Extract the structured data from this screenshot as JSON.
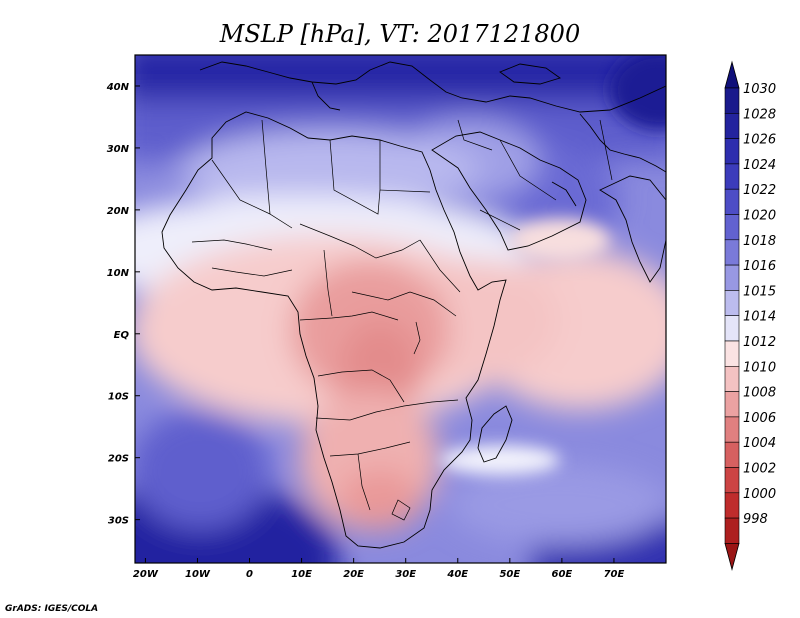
{
  "title": "MSLP [hPa], VT: 2017121800",
  "credit": "GrADS: IGES/COLA",
  "map": {
    "lon_range": [
      -22,
      80
    ],
    "lat_range": [
      -37,
      45
    ],
    "x_ticks": [
      "20W",
      "10W",
      "0",
      "10E",
      "20E",
      "30E",
      "40E",
      "50E",
      "60E",
      "70E"
    ],
    "x_tick_lons": [
      -20,
      -10,
      0,
      10,
      20,
      30,
      40,
      50,
      60,
      70
    ],
    "y_ticks": [
      "40N",
      "30N",
      "20N",
      "10N",
      "EQ",
      "10S",
      "20S",
      "30S"
    ],
    "y_tick_lats": [
      40,
      30,
      20,
      10,
      0,
      -10,
      -20,
      -30
    ]
  },
  "colorbar": {
    "labels": [
      "1030",
      "1028",
      "1026",
      "1024",
      "1022",
      "1020",
      "1018",
      "1016",
      "1015",
      "1014",
      "1012",
      "1010",
      "1008",
      "1006",
      "1004",
      "1002",
      "1000",
      "998"
    ],
    "colors": [
      "#1a1a8c",
      "#23239e",
      "#2e2eae",
      "#3c3cbb",
      "#4d4dc6",
      "#6262d0",
      "#7a7ad9",
      "#9898e3",
      "#bcbcee",
      "#e4e4f8",
      "#fbe3e3",
      "#f4c2c2",
      "#eba2a2",
      "#e08080",
      "#d66060",
      "#cc4444",
      "#bf2c2c",
      "#ad1f1f"
    ],
    "top_arrow_color": "#10107a",
    "bottom_arrow_color": "#9a1515"
  }
}
